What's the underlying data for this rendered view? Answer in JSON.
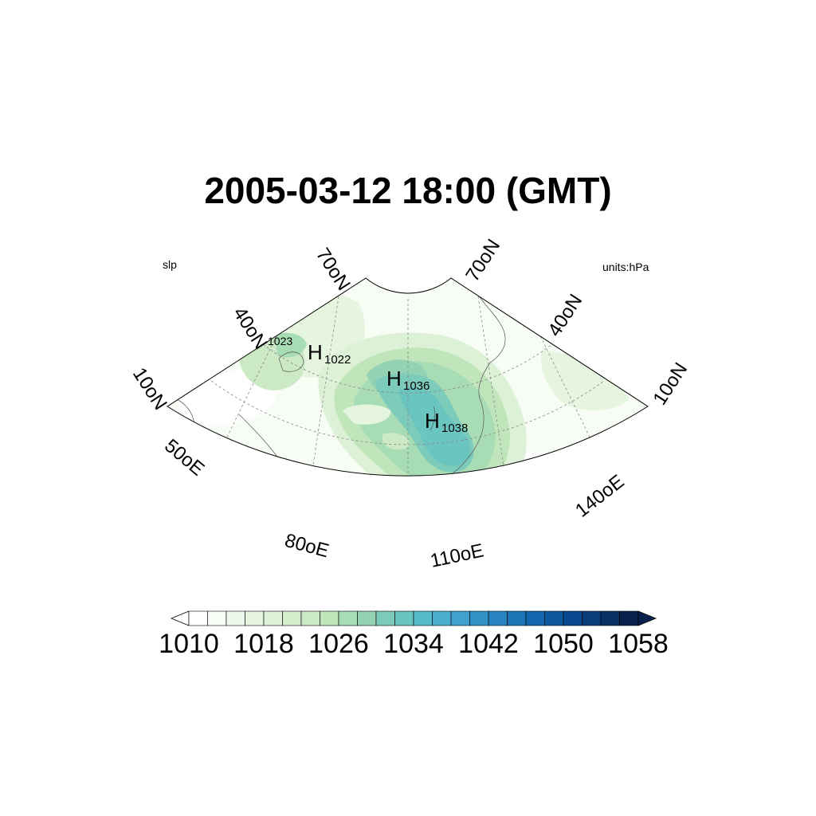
{
  "title": "2005-03-12 18:00 (GMT)",
  "left_label": "slp",
  "right_label": "units:hPa",
  "lat_labels": [
    {
      "text": "70oN",
      "side": "left"
    },
    {
      "text": "40oN",
      "side": "left"
    },
    {
      "text": "10oN",
      "side": "left"
    },
    {
      "text": "70oN",
      "side": "right"
    },
    {
      "text": "40oN",
      "side": "right"
    },
    {
      "text": "10oN",
      "side": "right"
    }
  ],
  "lon_labels": [
    "50oE",
    "80oE",
    "110oE",
    "140oE"
  ],
  "highs": [
    {
      "letter": "H",
      "value": "1022"
    },
    {
      "letter": "H",
      "value": "1036"
    },
    {
      "letter": "H",
      "value": "1038"
    }
  ],
  "contour_label": "1023",
  "colorbar": {
    "tick_labels": [
      "1010",
      "1018",
      "1026",
      "1034",
      "1042",
      "1050",
      "1058"
    ],
    "colors": [
      "#ffffff",
      "#f7fcf5",
      "#eef8ec",
      "#e5f5e0",
      "#dcf1d6",
      "#d3edcd",
      "#cae9c4",
      "#c0e5bb",
      "#a8dcb5",
      "#93d3b4",
      "#7dcbbb",
      "#6ac4c0",
      "#57bcc9",
      "#4bb0ce",
      "#3fa2ce",
      "#3393c8",
      "#2884c0",
      "#1d75b8",
      "#1467ac",
      "#0d589e",
      "#08488e",
      "#083d7a",
      "#083062",
      "#08214a"
    ]
  }
}
